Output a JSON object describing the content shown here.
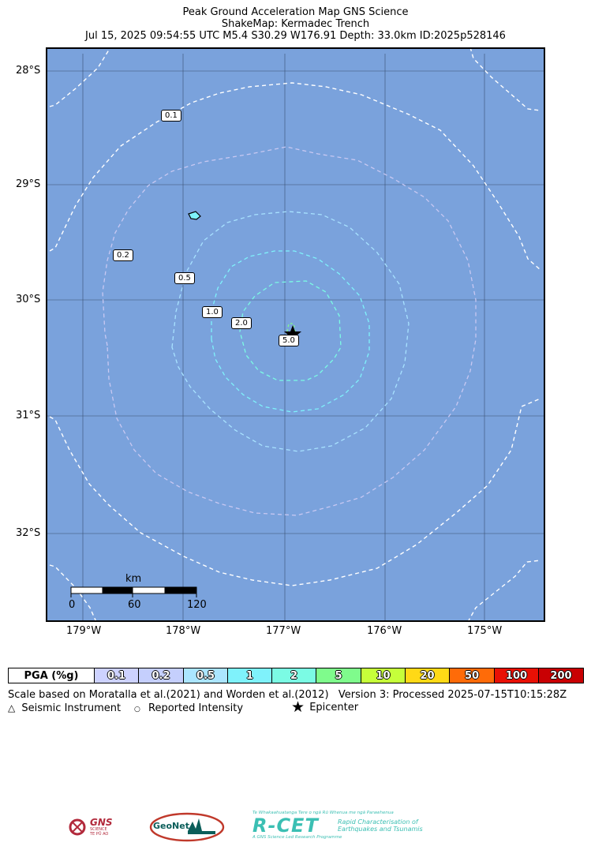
{
  "header": {
    "line1": "Peak Ground Acceleration Map GNS Science",
    "line2": "ShakeMap: Kermadec Trench",
    "line3": "Jul 15, 2025 09:54:55 UTC M5.4 S30.29 W176.91 Depth: 33.0km ID:2025p528146"
  },
  "map": {
    "water_color": "#7aa2dc",
    "lat_labels": [
      "28°S",
      "29°S",
      "29°S",
      "30°S",
      "31°S",
      "32°S"
    ],
    "lat_labels_unique": [
      "28°S",
      "29°S",
      "30°S",
      "31°S",
      "32°S"
    ],
    "lon_labels": [
      "179°W",
      "178°W",
      "177°W",
      "176°W",
      "175°W"
    ],
    "contour_labels": [
      "0.1",
      "0.2",
      "0.5",
      "1.0",
      "2.0",
      "5.0"
    ],
    "scale_bar": {
      "unit": "km",
      "ticks": [
        "0",
        "60",
        "120"
      ]
    }
  },
  "legend": {
    "header": "PGA (%g)",
    "cells": [
      {
        "label": "0.1",
        "color": "#cdd2ff"
      },
      {
        "label": "0.2",
        "color": "#c5cffd"
      },
      {
        "label": "0.5",
        "color": "#abe5ff"
      },
      {
        "label": "1",
        "color": "#7ff2fb"
      },
      {
        "label": "2",
        "color": "#7bfbe4"
      },
      {
        "label": "5",
        "color": "#7ffb8c"
      },
      {
        "label": "10",
        "color": "#c6ff3a"
      },
      {
        "label": "20",
        "color": "#ffd916"
      },
      {
        "label": "50",
        "color": "#ff6b08"
      },
      {
        "label": "100",
        "color": "#e81005"
      },
      {
        "label": "200",
        "color": "#c90003"
      }
    ]
  },
  "notes": {
    "scale_note": "Scale based on Moratalla et al.(2021) and Worden et al.(2012)   Version 3: Processed 2025-07-15T10:15:28Z",
    "seismic_instrument": "Seismic Instrument",
    "reported_intensity": "Reported Intensity",
    "epicenter": "Epicenter"
  },
  "logos": {
    "gns_text": "GNS",
    "gns_sub": "SCIENCE",
    "gns_sub2": "TE PŪ AO",
    "geonet_text": "GeoNet",
    "rcet_tagline": "Te Whakaahuatanga Tere o ngā Rū Whenua me ngā Parawhenua",
    "rcet_text": "R-CET",
    "rcet_desc1": "Rapid Characterisation of",
    "rcet_desc2": "Earthquakes and Tsunamis",
    "rcet_footer": "A GNS Science Led Research Programme"
  }
}
